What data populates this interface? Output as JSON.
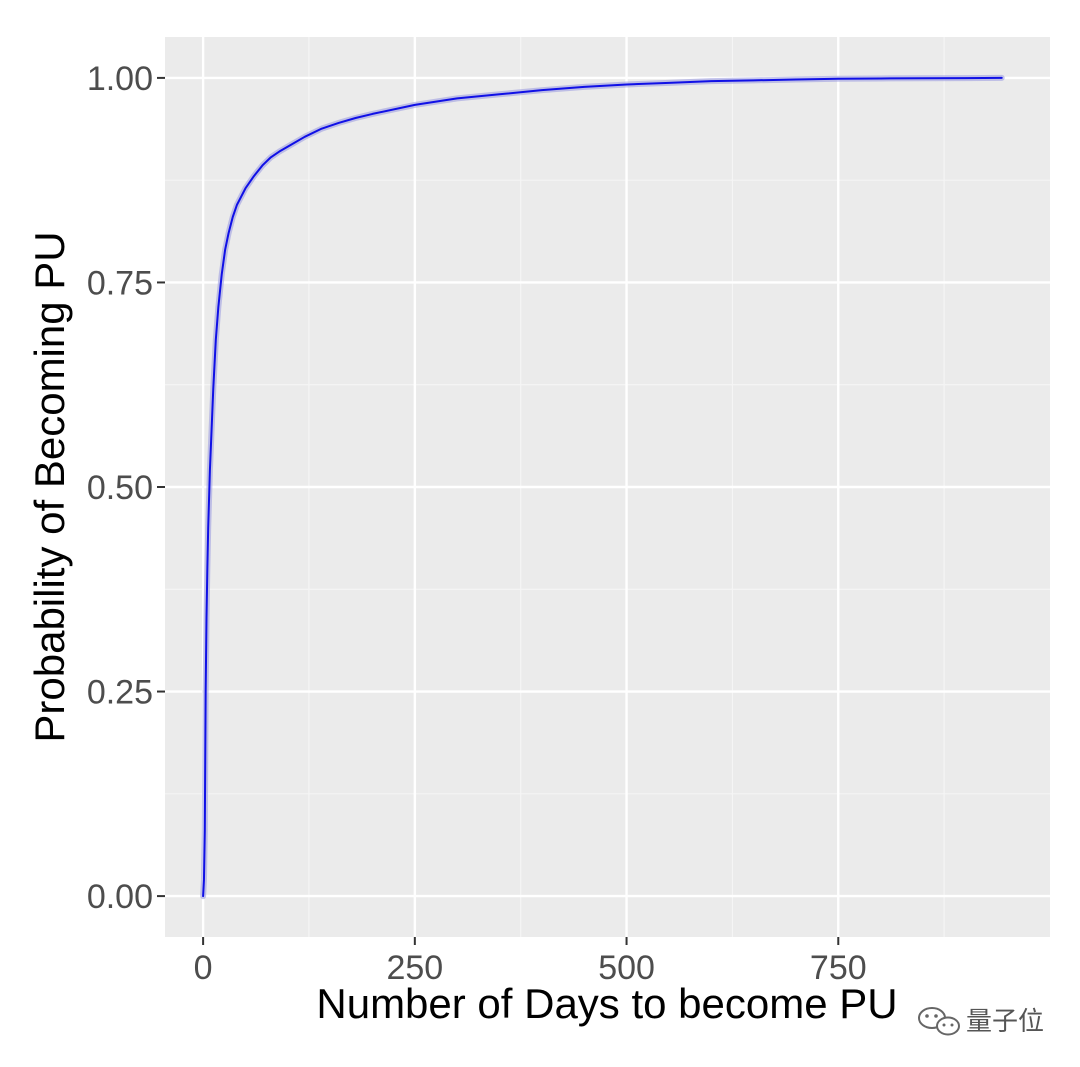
{
  "chart_data": {
    "type": "line",
    "title": "",
    "xlabel": "Number of Days to become PU",
    "ylabel": "Probability of Becoming PU",
    "xlim": [
      -45,
      1000
    ],
    "ylim": [
      -0.05,
      1.05
    ],
    "x_ticks": [
      0,
      250,
      500,
      750
    ],
    "x_tick_labels": [
      "0",
      "250",
      "500",
      "750"
    ],
    "x_minor_ticks": [
      125,
      375,
      625,
      875
    ],
    "y_ticks": [
      0,
      0.25,
      0.5,
      0.75,
      1.0
    ],
    "y_tick_labels": [
      "0.00",
      "0.25",
      "0.50",
      "0.75",
      "1.00"
    ],
    "y_minor_ticks": [
      0.125,
      0.375,
      0.625,
      0.875
    ],
    "grid": true,
    "legend": "none",
    "series": [
      {
        "x": [
          0,
          1,
          2,
          3,
          4,
          5,
          6,
          8,
          10,
          12,
          15,
          18,
          22,
          26,
          30,
          35,
          40,
          45,
          50,
          60,
          70,
          80,
          90,
          100,
          120,
          140,
          160,
          180,
          200,
          250,
          300,
          350,
          400,
          450,
          500,
          550,
          600,
          650,
          700,
          750,
          800,
          850,
          900,
          943
        ],
        "y": [
          0.0,
          0.02,
          0.08,
          0.25,
          0.34,
          0.4,
          0.45,
          0.52,
          0.57,
          0.62,
          0.68,
          0.72,
          0.76,
          0.79,
          0.81,
          0.83,
          0.845,
          0.855,
          0.865,
          0.88,
          0.893,
          0.903,
          0.91,
          0.916,
          0.928,
          0.938,
          0.945,
          0.951,
          0.956,
          0.967,
          0.975,
          0.98,
          0.985,
          0.989,
          0.992,
          0.994,
          0.996,
          0.997,
          0.998,
          0.999,
          0.9993,
          0.9996,
          0.9998,
          1.0
        ]
      }
    ],
    "colors": {
      "line": "#1010e6",
      "ribbon": "#9898e0",
      "panel": "#ebebeb",
      "grid_major": "#ffffff",
      "grid_minor": "#f5f5f5",
      "tick_text": "#4d4d4d"
    }
  },
  "watermark": {
    "text": "量子位",
    "icon": "wechat-icon"
  }
}
